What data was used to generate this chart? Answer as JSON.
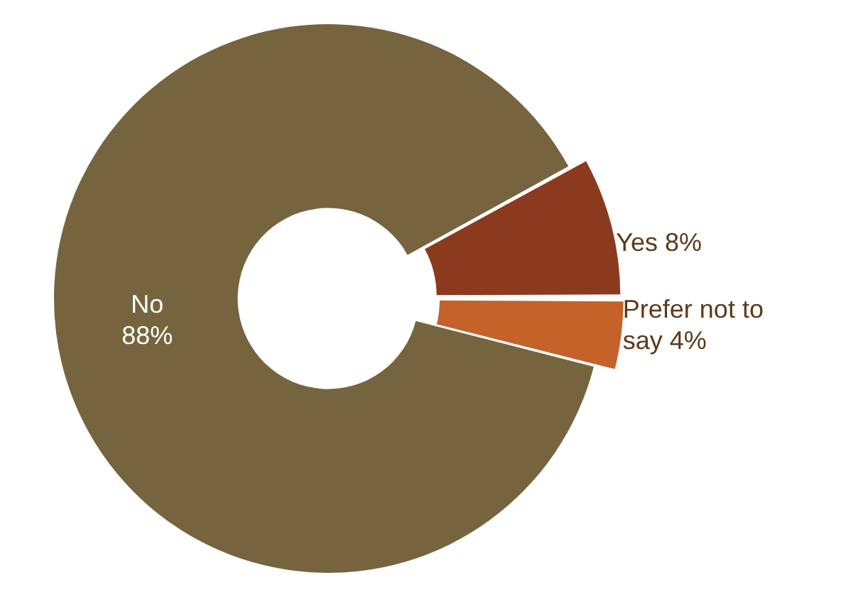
{
  "chart_data": {
    "type": "donut",
    "categories": [
      "No",
      "Yes",
      "Prefer not to say"
    ],
    "values": [
      88,
      8,
      4
    ],
    "value_labels": [
      "88%",
      "8%",
      "4%"
    ],
    "colors": [
      "#76643f",
      "#8b3a1e",
      "#c4622a"
    ],
    "legend": false
  }
}
